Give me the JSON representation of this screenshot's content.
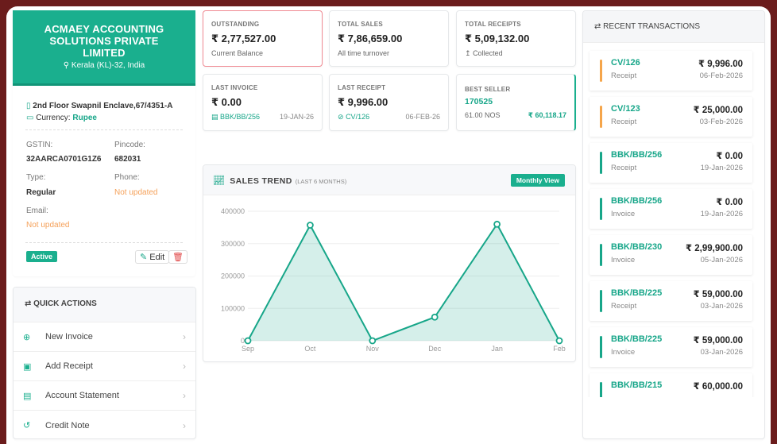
{
  "company": {
    "name": "ACMAEY ACCOUNTING SOLUTIONS PRIVATE LIMITED",
    "location": "Kerala (KL)-32, India",
    "address": "2nd Floor Swapnil Enclave,67/4351-A",
    "currency_label": "Currency:",
    "currency": "Rupee",
    "fields": {
      "gstin_label": "GSTIN:",
      "gstin": "32AARCA0701G1Z6",
      "pincode_label": "Pincode:",
      "pincode": "682031",
      "type_label": "Type:",
      "type": "Regular",
      "phone_label": "Phone:",
      "phone": "Not updated",
      "email_label": "Email:",
      "email": "Not updated"
    },
    "status": "Active",
    "edit_label": "Edit"
  },
  "quick_actions": {
    "title": "QUICK ACTIONS",
    "items": [
      {
        "label": "New Invoice",
        "icon": "plus-circle-icon"
      },
      {
        "label": "Add Receipt",
        "icon": "money-icon"
      },
      {
        "label": "Account Statement",
        "icon": "file-icon"
      },
      {
        "label": "Credit Note",
        "icon": "history-icon"
      }
    ]
  },
  "stats": {
    "outstanding": {
      "title": "OUTSTANDING",
      "value": "₹ 2,77,527.00",
      "sub": "Current Balance"
    },
    "total_sales": {
      "title": "TOTAL SALES",
      "value": "₹ 7,86,659.00",
      "sub": "All time turnover"
    },
    "total_receipts": {
      "title": "TOTAL RECEIPTS",
      "value": "₹ 5,09,132.00",
      "sub": "Collected"
    },
    "last_invoice": {
      "title": "LAST INVOICE",
      "value": "₹ 0.00",
      "ref": "BBK/BB/256",
      "date": "19-JAN-26"
    },
    "last_receipt": {
      "title": "LAST RECEIPT",
      "value": "₹ 9,996.00",
      "ref": "CV/126",
      "date": "06-FEB-26"
    },
    "best_seller": {
      "title": "BEST SELLER",
      "item": "170525",
      "qty": "61.00 NOS",
      "amount": "₹ 60,118.17"
    }
  },
  "sales_trend": {
    "title": "SALES TREND",
    "subtitle": "(LAST 6 MONTHS)",
    "button": "Monthly View"
  },
  "chart_data": {
    "type": "area",
    "categories": [
      "Sep",
      "Oct",
      "Nov",
      "Dec",
      "Jan",
      "Feb"
    ],
    "values": [
      0,
      357000,
      0,
      73000,
      360000,
      0
    ],
    "ylim": [
      0,
      400000
    ],
    "yticks": [
      "0",
      "100000",
      "200000",
      "300000",
      "400000"
    ],
    "grid": true,
    "color": "#17a689"
  },
  "transactions": {
    "title": "RECENT TRANSACTIONS",
    "items": [
      {
        "no": "CV/126",
        "type": "Receipt",
        "amount": "₹ 9,996.00",
        "date": "06-Feb-2026",
        "color": "#f5a54a"
      },
      {
        "no": "CV/123",
        "type": "Receipt",
        "amount": "₹ 25,000.00",
        "date": "03-Feb-2026",
        "color": "#f5a54a"
      },
      {
        "no": "BBK/BB/256",
        "type": "Receipt",
        "amount": "₹ 0.00",
        "date": "19-Jan-2026",
        "color": "#17a689"
      },
      {
        "no": "BBK/BB/256",
        "type": "Invoice",
        "amount": "₹ 0.00",
        "date": "19-Jan-2026",
        "color": "#17a689"
      },
      {
        "no": "BBK/BB/230",
        "type": "Invoice",
        "amount": "₹ 2,99,900.00",
        "date": "05-Jan-2026",
        "color": "#17a689"
      },
      {
        "no": "BBK/BB/225",
        "type": "Receipt",
        "amount": "₹ 59,000.00",
        "date": "03-Jan-2026",
        "color": "#17a689"
      },
      {
        "no": "BBK/BB/225",
        "type": "Invoice",
        "amount": "₹ 59,000.00",
        "date": "03-Jan-2026",
        "color": "#17a689"
      },
      {
        "no": "BBK/BB/215",
        "type": "",
        "amount": "₹ 60,000.00",
        "date": "",
        "color": "#17a689"
      }
    ]
  }
}
